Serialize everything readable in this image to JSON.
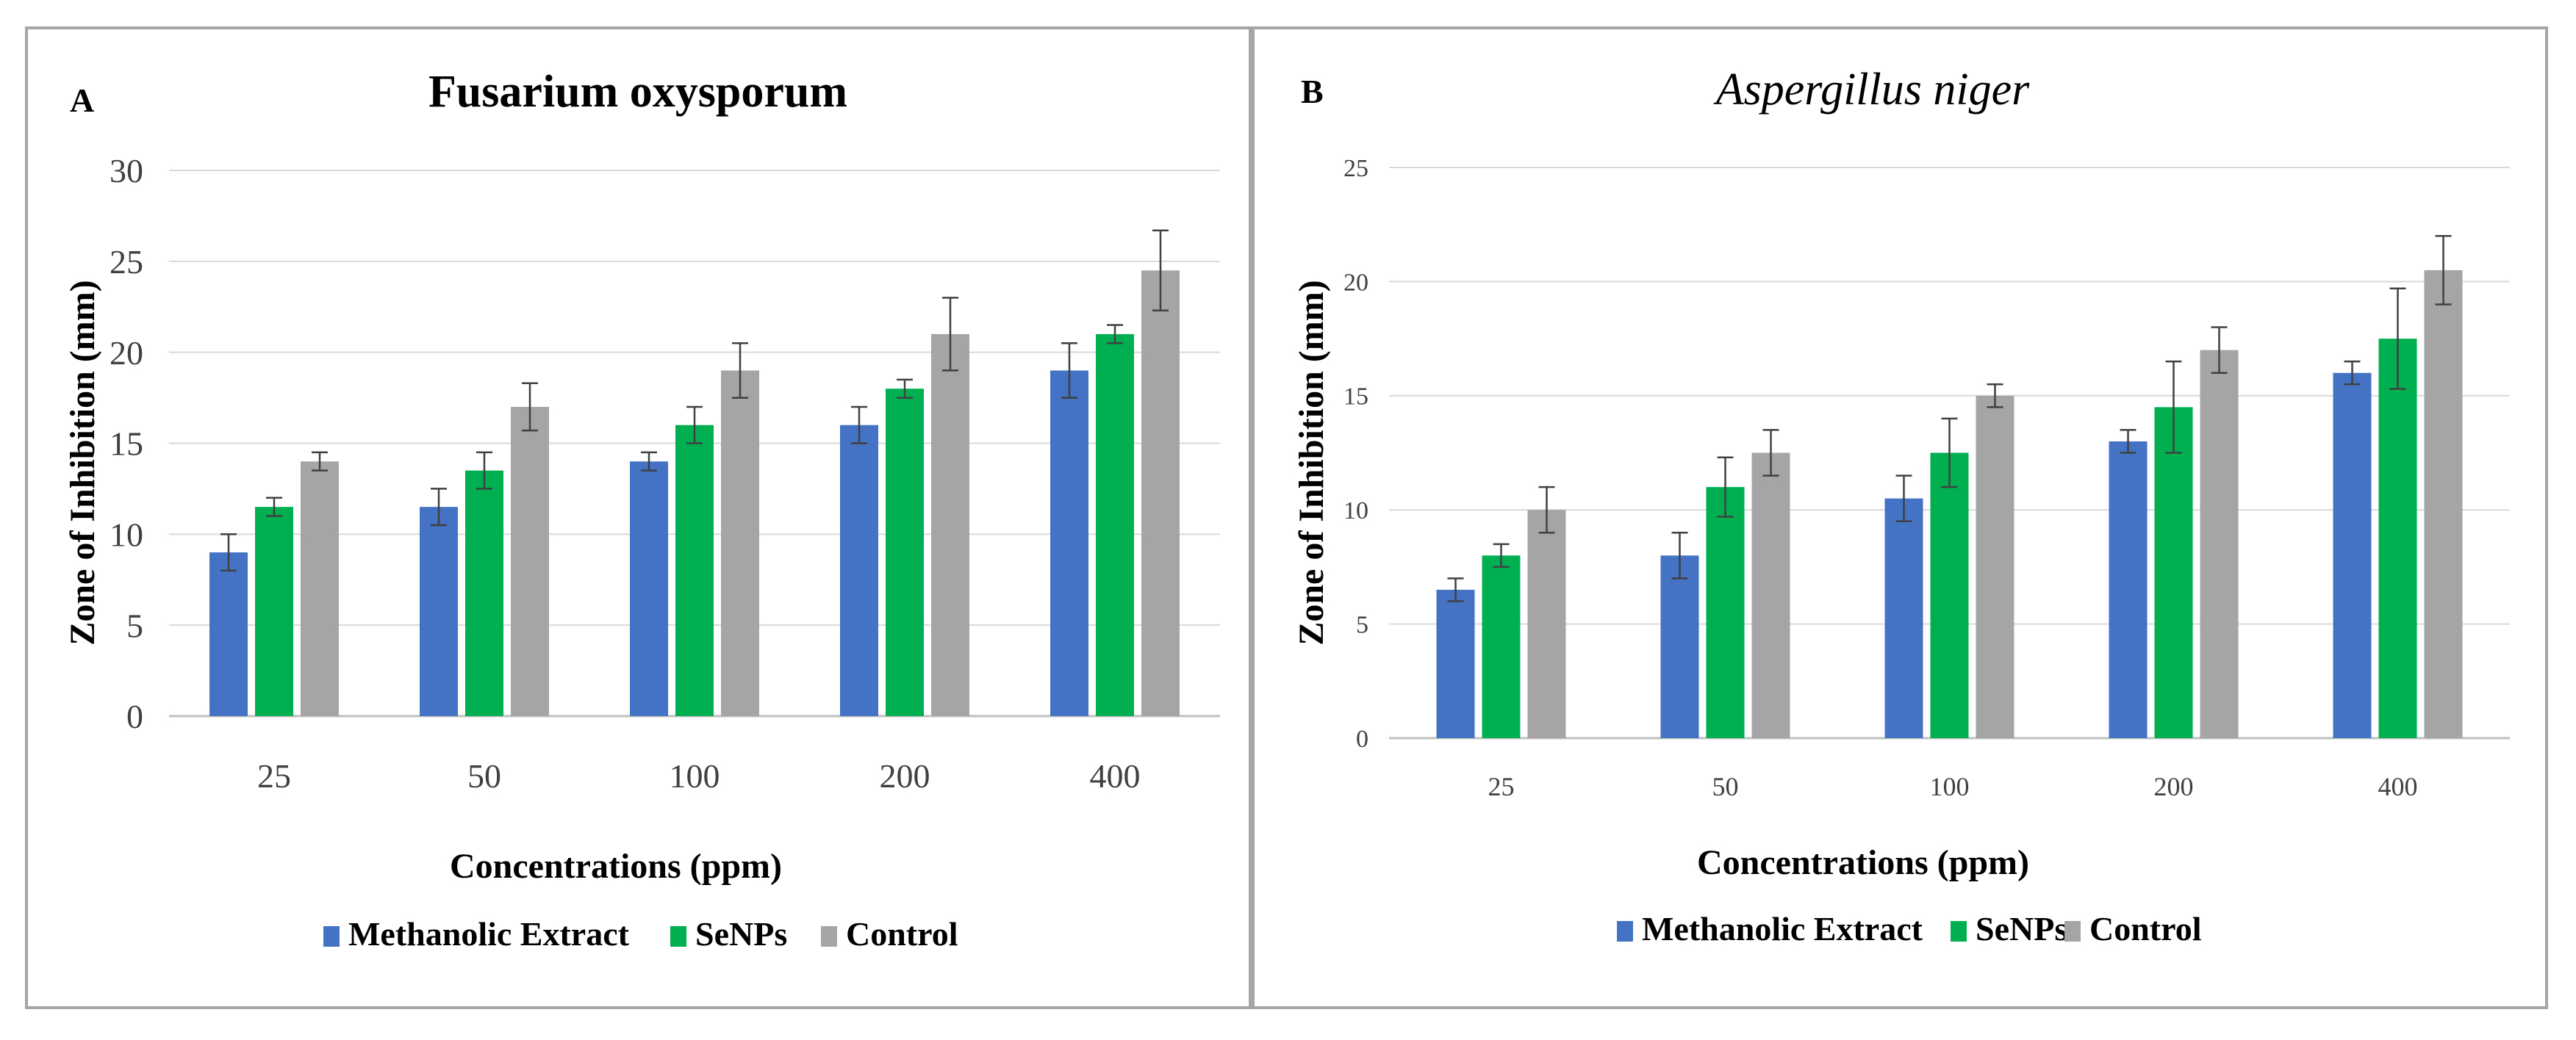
{
  "chart_data": [
    {
      "panel": "A",
      "type": "bar",
      "title": "Fusarium oxysporum",
      "title_italic": false,
      "xlabel": "Concentrations (ppm)",
      "ylabel": "Zone of Inhibition (mm)",
      "ylim": [
        0,
        30
      ],
      "yticks": [
        "0",
        "5",
        "10",
        "15",
        "20",
        "25",
        "30"
      ],
      "grid": true,
      "legend_position": "bottom",
      "categories": [
        "25",
        "50",
        "100",
        "200",
        "400"
      ],
      "series": [
        {
          "name": "Methanolic Extract",
          "color": "#4472c4",
          "values": [
            9,
            11.5,
            14,
            16,
            19
          ],
          "errors": [
            1,
            1,
            0.5,
            1,
            1.5
          ]
        },
        {
          "name": "SeNPs",
          "color": "#00b050",
          "values": [
            11.5,
            13.5,
            16,
            18,
            21
          ],
          "errors": [
            0.5,
            1,
            1,
            0.5,
            0.5
          ]
        },
        {
          "name": "Control",
          "color": "#a5a5a5",
          "values": [
            14,
            17,
            19,
            21,
            24.5
          ],
          "errors": [
            0.5,
            1.3,
            1.5,
            2,
            2.2
          ]
        }
      ]
    },
    {
      "panel": "B",
      "type": "bar",
      "title": "Aspergillus niger",
      "title_italic": true,
      "xlabel": "Concentrations (ppm)",
      "ylabel": "Zone of Inhibition (mm)",
      "ylim": [
        0,
        25
      ],
      "yticks": [
        "0",
        "5",
        "10",
        "15",
        "20",
        "25"
      ],
      "grid": true,
      "legend_position": "bottom",
      "categories": [
        "25",
        "50",
        "100",
        "200",
        "400"
      ],
      "series": [
        {
          "name": "Methanolic Extract",
          "color": "#4472c4",
          "values": [
            6.5,
            8,
            10.5,
            13,
            16
          ],
          "errors": [
            0.5,
            1,
            1,
            0.5,
            0.5
          ]
        },
        {
          "name": "SeNPs",
          "color": "#00b050",
          "values": [
            8,
            11,
            12.5,
            14.5,
            17.5
          ],
          "errors": [
            0.5,
            1.3,
            1.5,
            2,
            2.2
          ]
        },
        {
          "name": "Control",
          "color": "#a5a5a5",
          "values": [
            10,
            12.5,
            15,
            17,
            20.5
          ],
          "errors": [
            1,
            1,
            0.5,
            1,
            1.5
          ]
        }
      ]
    }
  ]
}
